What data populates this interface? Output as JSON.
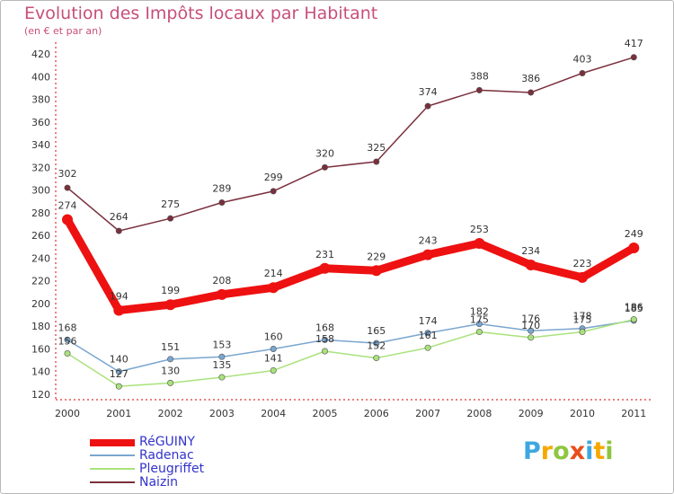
{
  "chart_data": {
    "type": "line",
    "title": "Evolution des Impôts locaux par Habitant",
    "subtitle": "(en € et par an)",
    "categories": [
      "2000",
      "2001",
      "2002",
      "2003",
      "2004",
      "2005",
      "2006",
      "2007",
      "2008",
      "2009",
      "2010",
      "2011"
    ],
    "ylim": [
      120,
      420
    ],
    "yticks": [
      120,
      140,
      160,
      180,
      200,
      220,
      240,
      260,
      280,
      300,
      320,
      340,
      360,
      380,
      400,
      420
    ],
    "grid": false,
    "legend_position": "bottom-left",
    "series": [
      {
        "name": "RéGUINY",
        "color": "#ee1111",
        "values": [
          274,
          194,
          199,
          208,
          214,
          231,
          229,
          243,
          253,
          234,
          223,
          249
        ]
      },
      {
        "name": "Radenac",
        "color": "#7aa6cf",
        "values": [
          168,
          140,
          151,
          153,
          160,
          168,
          165,
          174,
          182,
          176,
          178,
          185
        ]
      },
      {
        "name": "Pleugriffet",
        "color": "#a9e27c",
        "values": [
          156,
          127,
          130,
          135,
          141,
          158,
          152,
          161,
          175,
          170,
          175,
          186
        ]
      },
      {
        "name": "Naizin",
        "color": "#7a2f3c",
        "values": [
          302,
          264,
          275,
          289,
          299,
          320,
          325,
          374,
          388,
          386,
          403,
          417
        ]
      }
    ]
  },
  "logo": {
    "letters": [
      "P",
      "r",
      "o",
      "x",
      "i",
      "t",
      "i"
    ],
    "colors": [
      "#3fa7e0",
      "#f7a800",
      "#8dc63f",
      "#e94e1b",
      "#3fa7e0",
      "#f7a800",
      "#8dc63f"
    ]
  }
}
